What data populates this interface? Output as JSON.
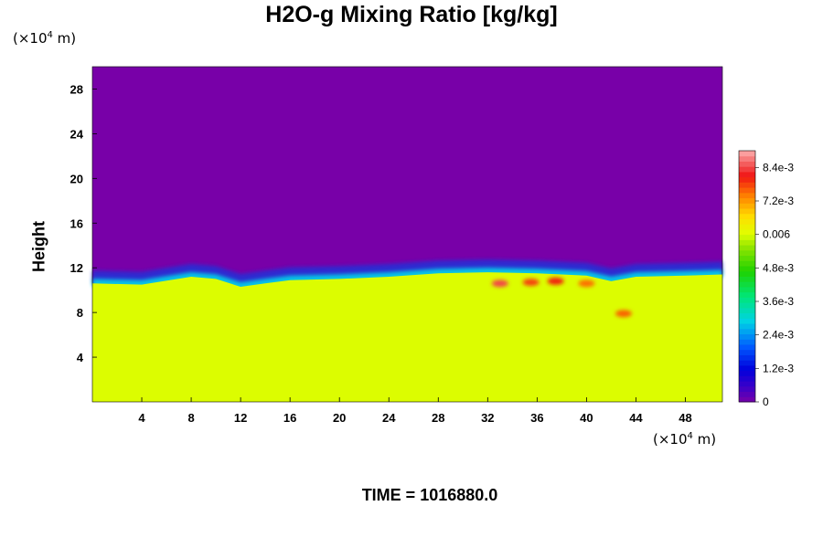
{
  "chart_data": {
    "type": "heatmap",
    "title": "H2O-g Mixing Ratio [kg/kg]",
    "ylabel": "Height",
    "x_unit": {
      "prefix": "(×10",
      "exp": "4",
      "suffix": " m)"
    },
    "y_unit": {
      "prefix": "(×10",
      "exp": "4",
      "suffix": " m)"
    },
    "xlim": [
      0,
      51
    ],
    "ylim": [
      0,
      30
    ],
    "x_ticks": [
      4,
      8,
      12,
      16,
      20,
      24,
      28,
      32,
      36,
      40,
      44,
      48
    ],
    "y_ticks": [
      4,
      8,
      12,
      16,
      20,
      24,
      28
    ],
    "colorbar": {
      "range": [
        0,
        0.009
      ],
      "tick_values": [
        0,
        0.0012,
        0.0024,
        0.0036,
        0.0048,
        0.006,
        0.0072,
        0.0084
      ],
      "tick_labels": [
        "0",
        "1.2e-3",
        "2.4e-3",
        "3.6e-3",
        "4.8e-3",
        "0.006",
        "7.2e-3",
        "8.4e-3"
      ]
    },
    "field": {
      "upper_value": 0.0,
      "lower_value": 0.006,
      "interface_height": [
        [
          0,
          10.6
        ],
        [
          4,
          10.5
        ],
        [
          8,
          11.2
        ],
        [
          10,
          11.0
        ],
        [
          12,
          10.3
        ],
        [
          14,
          10.6
        ],
        [
          16,
          10.9
        ],
        [
          20,
          11.0
        ],
        [
          24,
          11.2
        ],
        [
          28,
          11.5
        ],
        [
          32,
          11.6
        ],
        [
          36,
          11.5
        ],
        [
          40,
          11.3
        ],
        [
          42,
          10.8
        ],
        [
          44,
          11.2
        ],
        [
          48,
          11.3
        ],
        [
          51,
          11.4
        ]
      ],
      "moist_hotspots": [
        {
          "x": 33.0,
          "y": 10.6,
          "value": 0.0084
        },
        {
          "x": 35.5,
          "y": 10.7,
          "value": 0.0078
        },
        {
          "x": 37.5,
          "y": 10.8,
          "value": 0.008
        },
        {
          "x": 40.0,
          "y": 10.6,
          "value": 0.0075
        },
        {
          "x": 43.0,
          "y": 7.9,
          "value": 0.0076
        }
      ]
    }
  },
  "footer": {
    "time_label": "TIME = 1016880.0"
  }
}
